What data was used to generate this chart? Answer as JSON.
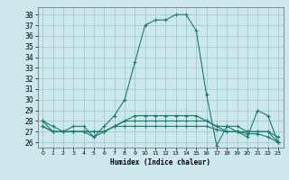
{
  "xlabel": "Humidex (Indice chaleur)",
  "ylabel": "",
  "bg_color": "#cce8ec",
  "grid_color": "#9ac4ca",
  "line_color": "#1a7a6e",
  "marker": "+",
  "series": [
    {
      "x": [
        0,
        1,
        2,
        3,
        4,
        5,
        6,
        7,
        8,
        9,
        10,
        11,
        12,
        13,
        14,
        15,
        16,
        17,
        18,
        19,
        20,
        21,
        22,
        23
      ],
      "y": [
        28,
        27,
        27,
        27.5,
        27.5,
        26.5,
        27.5,
        28.5,
        30,
        33.5,
        37,
        37.5,
        37.5,
        38,
        38,
        36.5,
        30.5,
        25.7,
        27.5,
        27,
        26.5,
        29,
        28.5,
        26
      ]
    },
    {
      "x": [
        0,
        1,
        2,
        3,
        4,
        5,
        6,
        7,
        8,
        9,
        10,
        11,
        12,
        13,
        14,
        15,
        16,
        17,
        18,
        19,
        20,
        21,
        22,
        23
      ],
      "y": [
        27.5,
        27,
        27,
        27,
        27,
        27,
        27,
        27.5,
        27.5,
        27.5,
        27.5,
        27.5,
        27.5,
        27.5,
        27.5,
        27.5,
        27.5,
        27.2,
        27,
        27,
        26.8,
        26.8,
        26.5,
        26
      ]
    },
    {
      "x": [
        0,
        1,
        2,
        3,
        4,
        5,
        6,
        7,
        8,
        9,
        10,
        11,
        12,
        13,
        14,
        15,
        16,
        17,
        18,
        19,
        20,
        21,
        22,
        23
      ],
      "y": [
        27.5,
        27,
        27,
        27,
        27,
        26.5,
        27,
        27.5,
        28,
        28,
        28,
        28,
        28,
        28,
        28,
        28,
        28,
        27.5,
        27.5,
        27.5,
        27,
        27,
        27,
        26
      ]
    },
    {
      "x": [
        0,
        1,
        2,
        3,
        4,
        5,
        6,
        7,
        8,
        9,
        10,
        11,
        12,
        13,
        14,
        15,
        16,
        17,
        18,
        19,
        20,
        21,
        22,
        23
      ],
      "y": [
        28,
        27.5,
        27,
        27,
        27,
        27,
        27,
        27.5,
        28,
        28.5,
        28.5,
        28.5,
        28.5,
        28.5,
        28.5,
        28.5,
        28,
        27.5,
        27,
        27,
        27,
        27,
        27,
        26.5
      ]
    }
  ],
  "xlim": [
    -0.5,
    23.5
  ],
  "ylim": [
    25.5,
    38.7
  ],
  "yticks": [
    26,
    27,
    28,
    29,
    30,
    31,
    32,
    33,
    34,
    35,
    36,
    37,
    38
  ],
  "xticks": [
    0,
    1,
    2,
    3,
    4,
    5,
    6,
    7,
    8,
    9,
    10,
    11,
    12,
    13,
    14,
    15,
    16,
    17,
    18,
    19,
    20,
    21,
    22,
    23
  ],
  "xtick_labels": [
    "0",
    "1",
    "2",
    "3",
    "4",
    "5",
    "6",
    "7",
    "8",
    "9",
    "10",
    "11",
    "12",
    "13",
    "14",
    "15",
    "16",
    "17",
    "18",
    "19",
    "20",
    "21",
    "22",
    "23"
  ],
  "figwidth": 3.2,
  "figheight": 2.0,
  "dpi": 100
}
